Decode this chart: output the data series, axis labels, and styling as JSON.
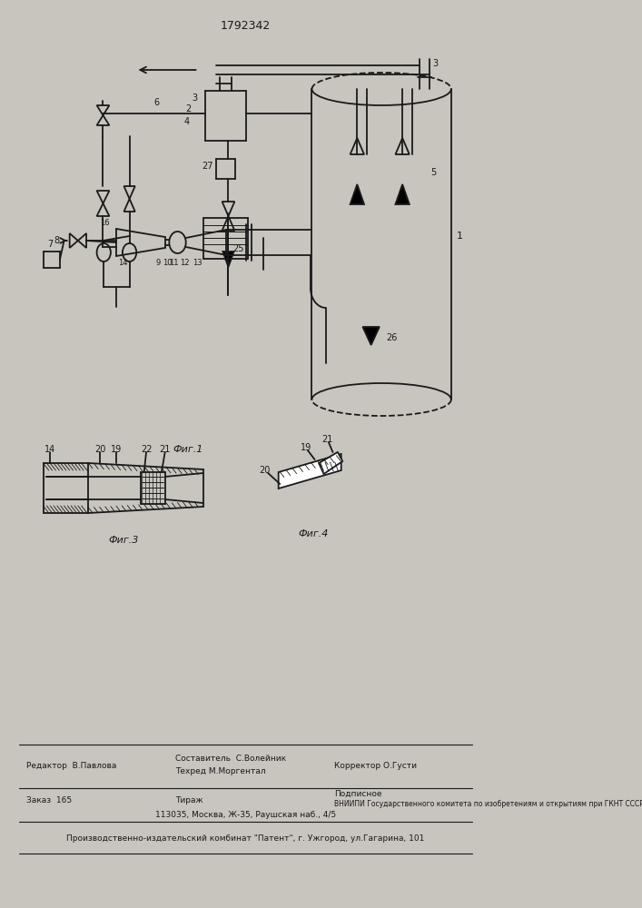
{
  "title": "1792342",
  "bg_color": "#c8c4be",
  "line_color": "#1a1a1a",
  "fig1_label": "Фиг.1",
  "fig3_label": "Фиг.3",
  "fig4_label": "Фиг.4",
  "editor": "Редактор  В.Павлова",
  "composer": "Составитель  С.Волейник",
  "techred": "Техред М.Моргентал",
  "corrector": "Корректор О.Густи",
  "order": "Заказ  165",
  "tirazh": "Тираж",
  "podpisnoe": "Подписное",
  "vniipii": "ВНИИПИ Государственного комитета по изобретениям и открытиям при ГКНТ СССР",
  "address": "113035, Москва, Ж-35, Раушская наб., 4/5",
  "patent_plant": "Производственно-издательский комбинат \"Патент\", г. Ужгород, ул.Гагарина, 101"
}
